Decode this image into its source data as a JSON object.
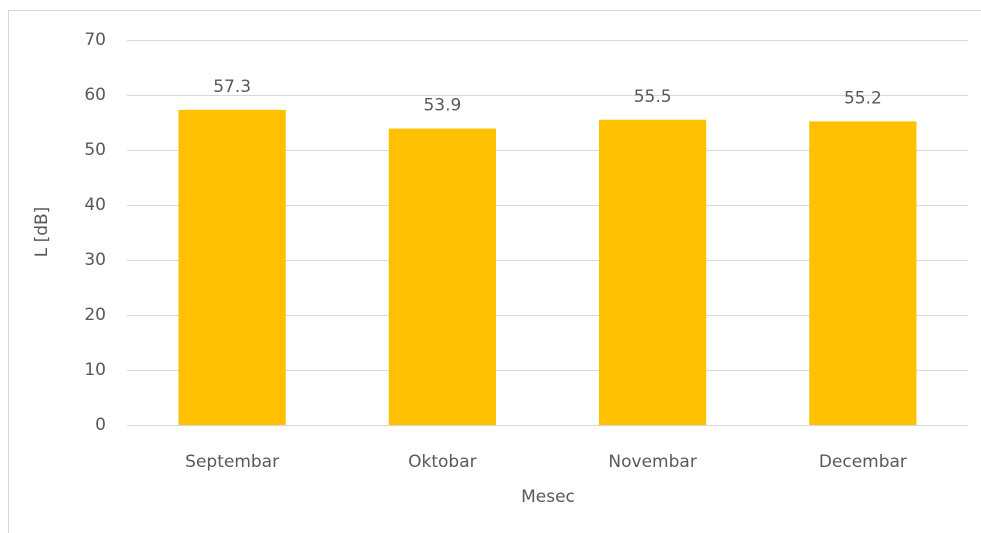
{
  "chart_data": {
    "type": "bar",
    "categories": [
      "Septembar",
      "Oktobar",
      "Novembar",
      "Decembar"
    ],
    "values": [
      57.3,
      53.9,
      55.5,
      55.2
    ],
    "color": "#ffc000",
    "ylim": [
      0,
      70
    ],
    "yticks": [
      0,
      10,
      20,
      30,
      40,
      50,
      60,
      70
    ],
    "grid": true,
    "xlabel": "Mesec",
    "ylabel": "L [dB]"
  }
}
